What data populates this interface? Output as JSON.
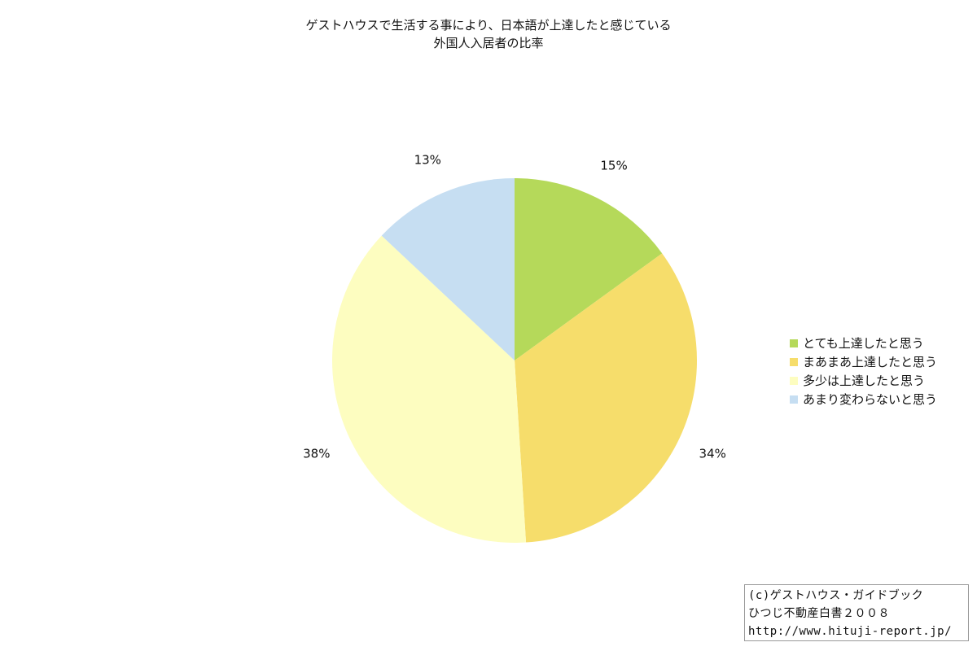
{
  "chart_data": {
    "type": "pie",
    "title_lines": [
      "ゲストハウスで生活する事により、日本語が上達したと感じている",
      "外国人入居者の比率"
    ],
    "legend_position": "right",
    "slices": [
      {
        "label": "とても上達したと思う",
        "value": 15,
        "value_label": "15%",
        "color": "#b5d95a"
      },
      {
        "label": "まあまあ上達したと思う",
        "value": 34,
        "value_label": "34%",
        "color": "#f6dd6b"
      },
      {
        "label": "多少は上達したと思う",
        "value": 38,
        "value_label": "38%",
        "color": "#fdfdc0"
      },
      {
        "label": "あまり変わらないと思う",
        "value": 13,
        "value_label": "13%",
        "color": "#c6def2"
      }
    ]
  },
  "credit": {
    "line1": "(c)ゲストハウス・ガイドブック",
    "line2": "ひつじ不動産白書２００８",
    "line3": "http://www.hituji-report.jp/"
  }
}
